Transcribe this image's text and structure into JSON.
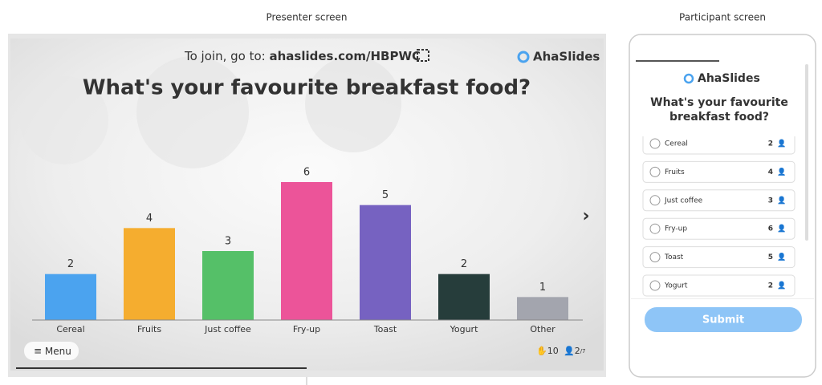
{
  "labels": {
    "presenter": "Presenter screen",
    "participant": "Participant screen"
  },
  "presenter": {
    "join_prefix": "To join, go to:",
    "join_url": "ahaslides.com/HBPWC",
    "brand": "AhaSlides",
    "menu": "Menu",
    "reactions": "10",
    "participants": "2",
    "participants_total": "/7"
  },
  "chart_data": {
    "type": "bar",
    "title": "What's your favourite breakfast food?",
    "categories": [
      "Cereal",
      "Fruits",
      "Just coffee",
      "Fry-up",
      "Toast",
      "Yogurt",
      "Other"
    ],
    "values": [
      2,
      4,
      3,
      6,
      5,
      2,
      1
    ],
    "colors": [
      "#4ba3ef",
      "#f5ad2f",
      "#55c068",
      "#ec5499",
      "#7662c1",
      "#263d3b",
      "#a3a5ae"
    ]
  },
  "participant": {
    "brand": "AhaSlides",
    "title_lines": [
      "What's your favourite",
      "breakfast food?"
    ],
    "options": [
      {
        "label": "Cereal",
        "count": 2
      },
      {
        "label": "Fruits",
        "count": 4
      },
      {
        "label": "Just coffee",
        "count": 3
      },
      {
        "label": "Fry-up",
        "count": 6
      },
      {
        "label": "Toast",
        "count": 5
      },
      {
        "label": "Yogurt",
        "count": 2
      }
    ],
    "submit": "Submit"
  }
}
